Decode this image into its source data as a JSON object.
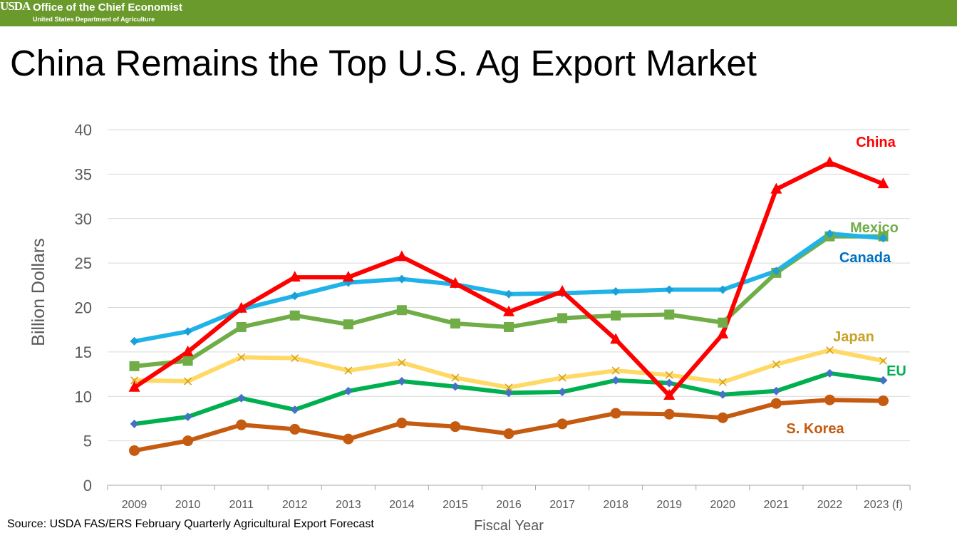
{
  "header": {
    "logo_text": "USDA",
    "office": "Office of the Chief Economist",
    "department": "United States Department of Agriculture"
  },
  "title": "China Remains the Top U.S. Ag Export Market",
  "source": "Source: USDA FAS/ERS February Quarterly Agricultural Export Forecast",
  "chart_data": {
    "type": "line",
    "xlabel": "Fiscal Year",
    "ylabel": "Billion Dollars",
    "ylim": [
      0,
      40
    ],
    "yticks": [
      0,
      5,
      10,
      15,
      20,
      25,
      30,
      35,
      40
    ],
    "grid": "horizontal",
    "legend": "direct labels at right end of lines",
    "categories": [
      "2009",
      "2010",
      "2011",
      "2012",
      "2013",
      "2014",
      "2015",
      "2016",
      "2017",
      "2018",
      "2019",
      "2020",
      "2021",
      "2022",
      "2023 (f)"
    ],
    "series": [
      {
        "name": "S. Korea",
        "color": "#c55a11",
        "marker": "circle",
        "values": [
          3.9,
          5.0,
          6.8,
          6.3,
          5.2,
          7.0,
          6.6,
          5.8,
          6.9,
          8.1,
          8.0,
          7.6,
          9.2,
          9.6,
          9.5
        ]
      },
      {
        "name": "EU",
        "color": "#00b050",
        "marker": "diamond",
        "values": [
          6.9,
          7.7,
          9.8,
          8.5,
          10.6,
          11.7,
          11.1,
          10.4,
          10.5,
          11.8,
          11.5,
          10.2,
          10.6,
          12.6,
          11.8
        ]
      },
      {
        "name": "Japan",
        "color": "#ffd966",
        "marker": "x",
        "values": [
          11.8,
          11.7,
          14.4,
          14.3,
          12.9,
          13.8,
          12.1,
          11.0,
          12.1,
          12.9,
          12.4,
          11.6,
          13.6,
          15.2,
          14.0
        ]
      },
      {
        "name": "Mexico",
        "color": "#70ad47",
        "marker": "square",
        "values": [
          13.4,
          14.0,
          17.8,
          19.1,
          18.1,
          19.7,
          18.2,
          17.8,
          18.8,
          19.1,
          19.2,
          18.3,
          23.9,
          28.0,
          28.0
        ]
      },
      {
        "name": "Canada",
        "color": "#1fb3e8",
        "marker": "diamond",
        "values": [
          16.2,
          17.3,
          19.8,
          21.3,
          22.8,
          23.2,
          22.6,
          21.5,
          21.6,
          21.8,
          22.0,
          22.0,
          24.1,
          28.3,
          27.8
        ]
      },
      {
        "name": "China",
        "color": "#ff0000",
        "marker": "triangle",
        "values": [
          11.0,
          15.0,
          19.9,
          23.4,
          23.4,
          25.7,
          22.7,
          19.5,
          21.8,
          16.4,
          10.1,
          17.0,
          33.3,
          36.3,
          33.9
        ]
      }
    ],
    "label_colors": {
      "S. Korea": "#c55a11",
      "EU": "#00b050",
      "Japan": "#c9a227",
      "Mexico": "#70ad47",
      "Canada": "#0070c0",
      "China": "#ff0000"
    }
  }
}
